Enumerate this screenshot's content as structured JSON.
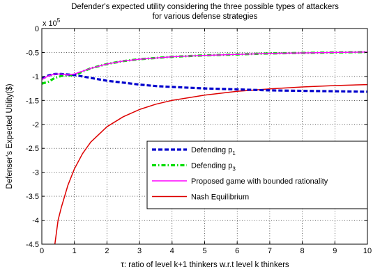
{
  "chart_data": {
    "type": "line",
    "title_line1": "Defender's expected utility considering the three possible types of attackers",
    "title_line2": "for various defense strategies",
    "xlabel": "τ: ratio of level k+1 thinkers w.r.t level k thinkers",
    "ylabel": "Defenser's Expected Utility($)",
    "y_exponent_label": "x 10",
    "y_exponent_power": "5",
    "xlim": [
      0,
      10
    ],
    "ylim": [
      -4.5,
      0
    ],
    "y_scale_factor": 100000,
    "x_ticks": [
      {
        "v": 0,
        "label": "0"
      },
      {
        "v": 1,
        "label": "1"
      },
      {
        "v": 2,
        "label": "2"
      },
      {
        "v": 3,
        "label": "3"
      },
      {
        "v": 4,
        "label": "4"
      },
      {
        "v": 5,
        "label": "5"
      },
      {
        "v": 6,
        "label": "6"
      },
      {
        "v": 7,
        "label": "7"
      },
      {
        "v": 8,
        "label": "8"
      },
      {
        "v": 9,
        "label": "9"
      },
      {
        "v": 10,
        "label": "10"
      }
    ],
    "y_ticks": [
      {
        "v": 0,
        "label": "0"
      },
      {
        "v": -0.5,
        "label": "-0.5"
      },
      {
        "v": -1,
        "label": "-1"
      },
      {
        "v": -1.5,
        "label": "-1.5"
      },
      {
        "v": -2,
        "label": "-2"
      },
      {
        "v": -2.5,
        "label": "-2.5"
      },
      {
        "v": -3,
        "label": "-3"
      },
      {
        "v": -3.5,
        "label": "-3.5"
      },
      {
        "v": -4,
        "label": "-4"
      },
      {
        "v": -4.5,
        "label": "-4.5"
      }
    ],
    "grid": true,
    "legend_position": "center-right",
    "series": [
      {
        "name": "Defending p",
        "subscript": "1",
        "color": "#0000cc",
        "style": "dashed",
        "x": [
          0,
          0.2,
          0.4,
          0.6,
          0.8,
          1.0,
          1.5,
          2,
          2.5,
          3,
          3.5,
          4,
          5,
          6,
          7,
          8,
          9,
          10
        ],
        "y": [
          -1.05,
          -0.98,
          -0.95,
          -0.95,
          -0.96,
          -0.97,
          -1.03,
          -1.09,
          -1.13,
          -1.17,
          -1.2,
          -1.22,
          -1.25,
          -1.27,
          -1.29,
          -1.3,
          -1.31,
          -1.32
        ]
      },
      {
        "name": "Defending p",
        "subscript": "3",
        "color": "#00dd00",
        "style": "dashdot",
        "x": [
          0,
          0.2,
          0.4,
          0.6,
          0.8,
          1.0,
          1.5,
          2,
          2.5,
          3,
          4,
          5,
          6,
          7,
          8,
          9,
          10
        ],
        "y": [
          -1.15,
          -1.11,
          -1.03,
          -0.99,
          -0.98,
          -0.97,
          -0.83,
          -0.74,
          -0.68,
          -0.64,
          -0.59,
          -0.56,
          -0.54,
          -0.52,
          -0.51,
          -0.5,
          -0.49
        ]
      },
      {
        "name": "Proposed game with bounded rationality",
        "color": "#ff00ff",
        "style": "solid",
        "x": [
          0,
          0.2,
          0.4,
          0.6,
          0.8,
          1.0,
          1.5,
          2,
          2.5,
          3,
          4,
          5,
          6,
          7,
          8,
          9,
          10
        ],
        "y": [
          -1.06,
          -0.99,
          -0.95,
          -0.95,
          -0.97,
          -0.95,
          -0.83,
          -0.74,
          -0.68,
          -0.64,
          -0.59,
          -0.56,
          -0.54,
          -0.52,
          -0.51,
          -0.5,
          -0.49
        ]
      },
      {
        "name": "Nash Equilibrium",
        "color": "#dd0000",
        "style": "solid",
        "x": [
          0.4,
          0.5,
          0.6,
          0.8,
          1.0,
          1.25,
          1.5,
          2,
          2.5,
          3,
          3.5,
          4,
          5,
          6,
          7,
          8,
          9,
          10
        ],
        "y": [
          -4.5,
          -4.0,
          -3.73,
          -3.27,
          -2.93,
          -2.61,
          -2.37,
          -2.05,
          -1.84,
          -1.69,
          -1.58,
          -1.5,
          -1.39,
          -1.31,
          -1.26,
          -1.22,
          -1.19,
          -1.17
        ]
      }
    ]
  }
}
